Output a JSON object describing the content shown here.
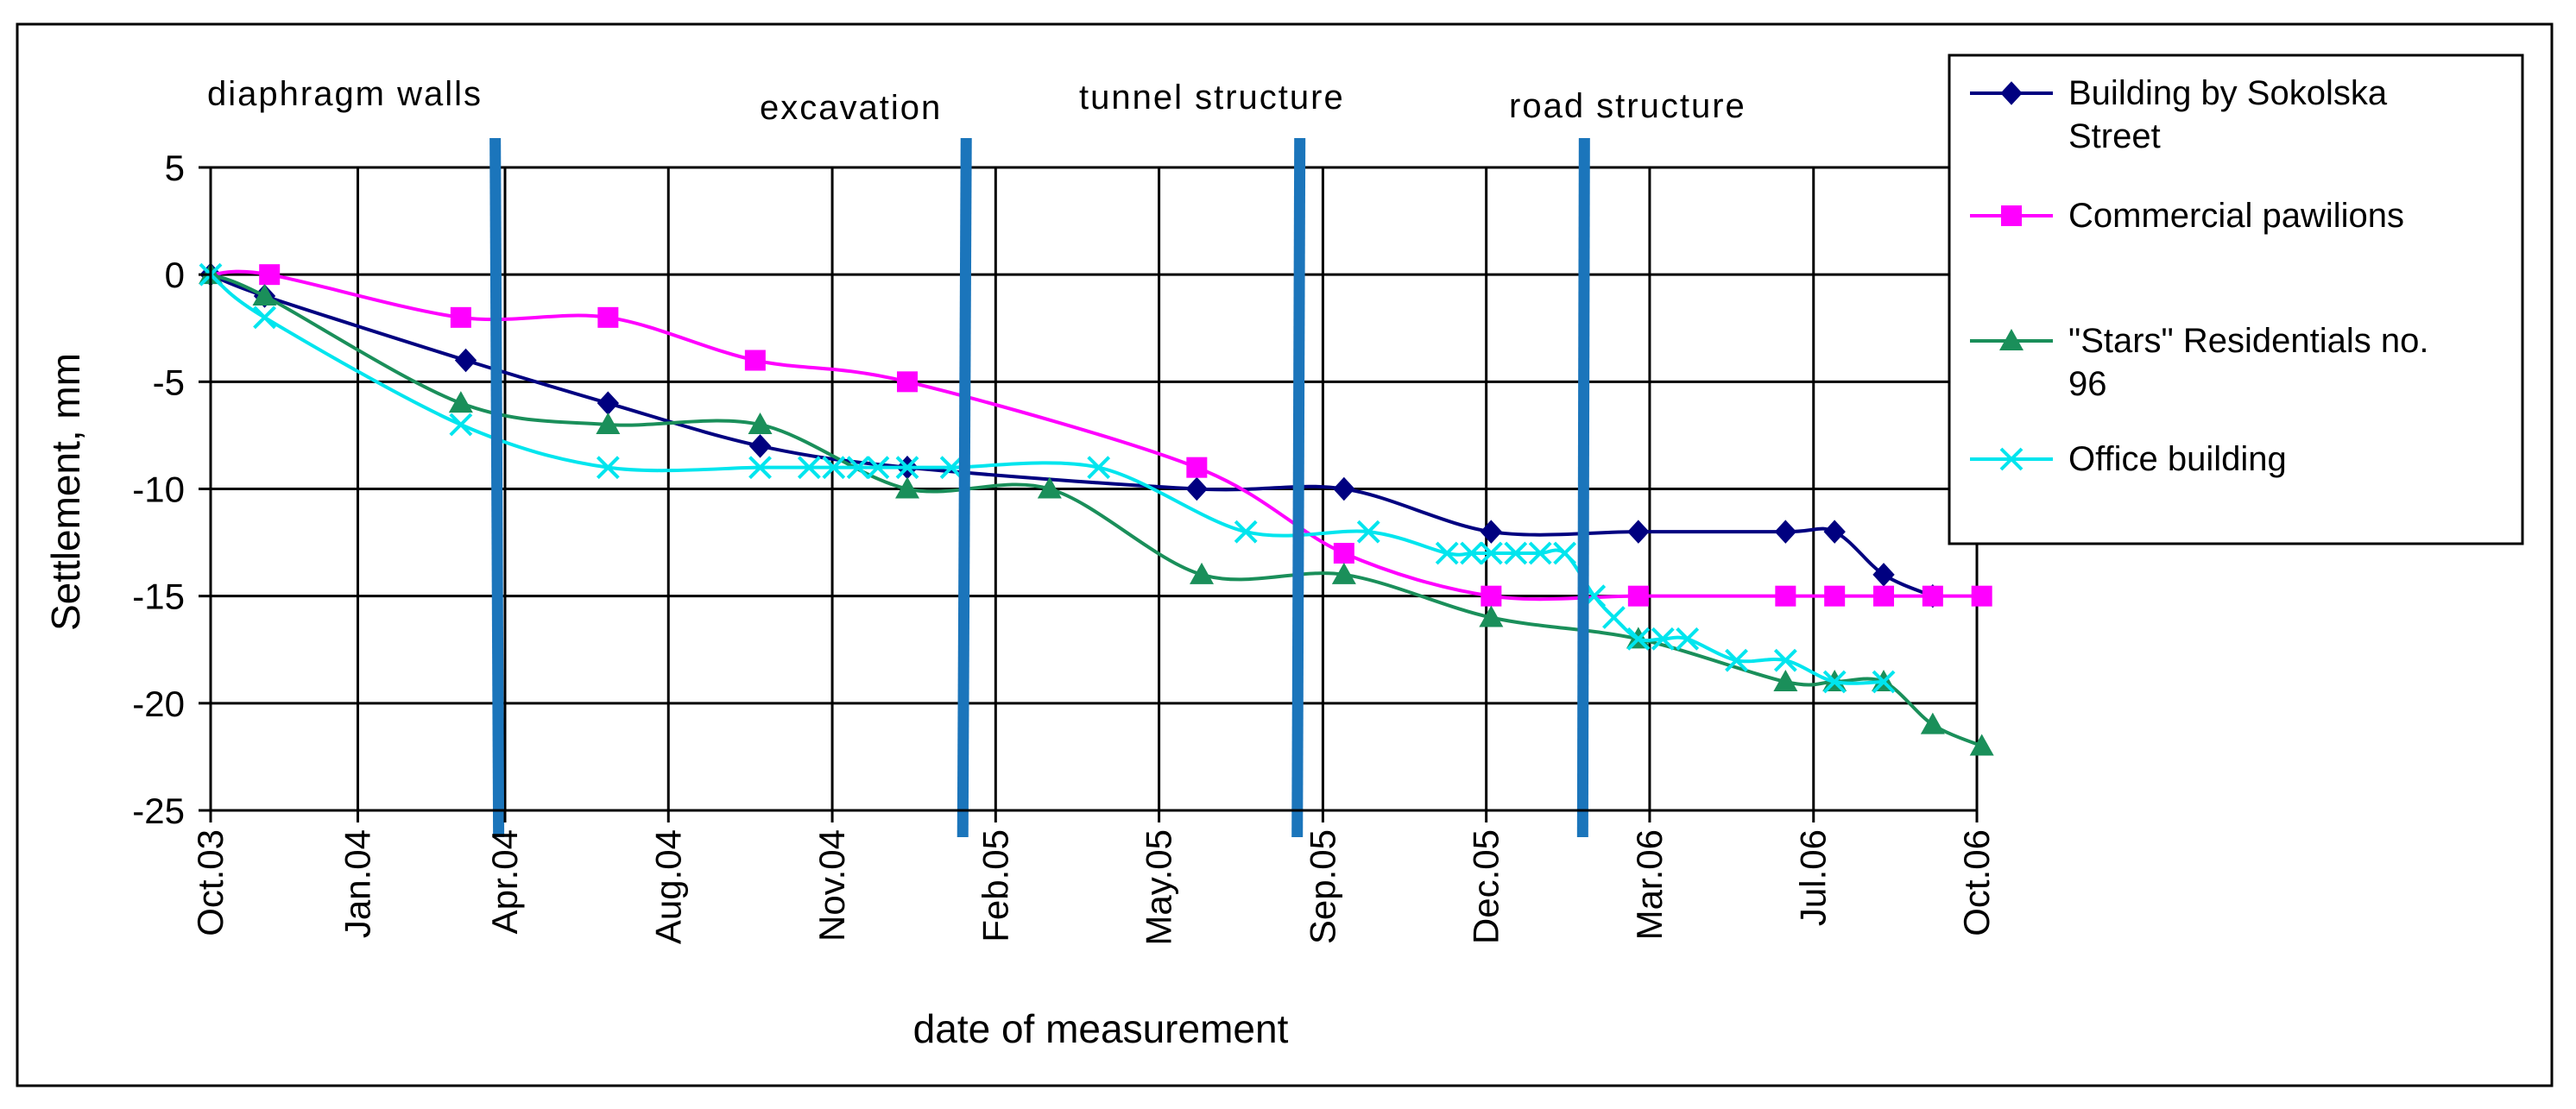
{
  "chart_data": {
    "type": "line",
    "title": "",
    "xlabel": "date of measurement",
    "ylabel": "Settlement, mm",
    "ylim": [
      -25,
      5
    ],
    "yticks": [
      5,
      0,
      -5,
      -10,
      -15,
      -20,
      -25
    ],
    "grid": true,
    "x_unit": "months since Oct.03",
    "xlim": [
      0,
      36
    ],
    "x_ticks": [
      {
        "label": "Oct.03",
        "x": 0
      },
      {
        "label": "Jan.04",
        "x": 3
      },
      {
        "label": "Apr.04",
        "x": 6
      },
      {
        "label": "Aug.04",
        "x": 9.33
      },
      {
        "label": "Nov.04",
        "x": 12.67
      },
      {
        "label": "Feb.05",
        "x": 16
      },
      {
        "label": "May.05",
        "x": 19.33
      },
      {
        "label": "Sep.05",
        "x": 22.67
      },
      {
        "label": "Dec.05",
        "x": 26
      },
      {
        "label": "Mar.06",
        "x": 29.33
      },
      {
        "label": "Jul.06",
        "x": 32.67
      },
      {
        "label": "Oct.06",
        "x": 36
      }
    ],
    "phases": [
      {
        "label": "diaphragm walls",
        "x": 5.8
      },
      {
        "label": "excavation",
        "x": 15.4
      },
      {
        "label": "tunnel structure",
        "x": 22.2
      },
      {
        "label": "road structure",
        "x": 28.0
      }
    ],
    "legend_position": "top-right",
    "series": [
      {
        "name": "Building by Sokolska Street",
        "color": "#000080",
        "marker": "diamond",
        "x": [
          0,
          1.1,
          5.2,
          8.1,
          11.2,
          14.2,
          20.1,
          23.1,
          26.1,
          29.1,
          32.1,
          33.1,
          34.1,
          35.1
        ],
        "y": [
          0,
          -1,
          -4,
          -6,
          -8,
          -9,
          -10,
          -10,
          -12,
          -12,
          -12,
          -12,
          -14,
          -15
        ]
      },
      {
        "name": "Commercial pawilions",
        "color": "#ff00ff",
        "marker": "square",
        "x": [
          0,
          1.2,
          5.1,
          8.1,
          11.1,
          14.2,
          20.1,
          23.1,
          26.1,
          29.1,
          32.1,
          33.1,
          34.1,
          35.1,
          36.1
        ],
        "y": [
          0,
          0,
          -2,
          -2,
          -4,
          -5,
          -9,
          -13,
          -15,
          -15,
          -15,
          -15,
          -15,
          -15,
          -15
        ],
        "first_marker_hidden": true
      },
      {
        "name": "\"Stars\" Residentials no. 96",
        "color": "#1a8f5a",
        "marker": "triangle",
        "x": [
          0,
          1.1,
          5.1,
          8.1,
          11.2,
          14.2,
          17.1,
          20.2,
          23.1,
          26.1,
          29.1,
          32.1,
          33.1,
          34.1,
          35.1,
          36.1
        ],
        "y": [
          0,
          -1,
          -6,
          -7,
          -7,
          -10,
          -10,
          -14,
          -14,
          -16,
          -17,
          -19,
          -19,
          -19,
          -21,
          -22
        ]
      },
      {
        "name": "Office building",
        "color": "#00e5ee",
        "marker": "x",
        "x": [
          0,
          1.1,
          5.1,
          8.1,
          11.2,
          12.2,
          12.7,
          13.2,
          13.6,
          14.2,
          15.1,
          18.1,
          21.1,
          23.6,
          25.2,
          25.7,
          26.1,
          26.6,
          27.1,
          27.6,
          28.2,
          28.6,
          29.1,
          29.6,
          30.1,
          31.1,
          32.1,
          33.1,
          34.1
        ],
        "y": [
          0,
          -2,
          -7,
          -9,
          -9,
          -9,
          -9,
          -9,
          -9,
          -9,
          -9,
          -9,
          -12,
          -12,
          -13,
          -13,
          -13,
          -13,
          -13,
          -13,
          -15,
          -16,
          -17,
          -17,
          -17,
          -18,
          -18,
          -19,
          -19
        ]
      }
    ]
  }
}
